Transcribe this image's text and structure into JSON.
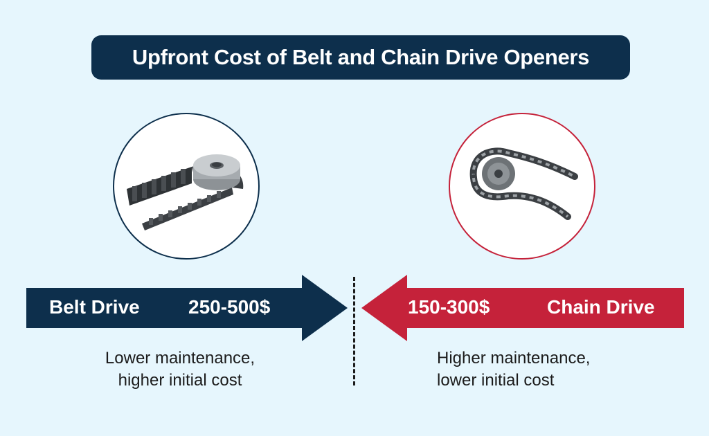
{
  "title": "Upfront Cost of Belt and Chain Drive Openers",
  "colors": {
    "navy": "#0d2f4c",
    "red": "#c5223a",
    "background": "#e6f6fd"
  },
  "belt": {
    "icon": "belt-drive-icon",
    "label": "Belt Drive",
    "price": "250-500$",
    "caption_line1": "Lower maintenance,",
    "caption_line2": "higher initial cost"
  },
  "chain": {
    "icon": "chain-drive-icon",
    "label": "Chain Drive",
    "price": "150-300$",
    "caption_line1": "Higher maintenance,",
    "caption_line2": "lower initial cost"
  }
}
